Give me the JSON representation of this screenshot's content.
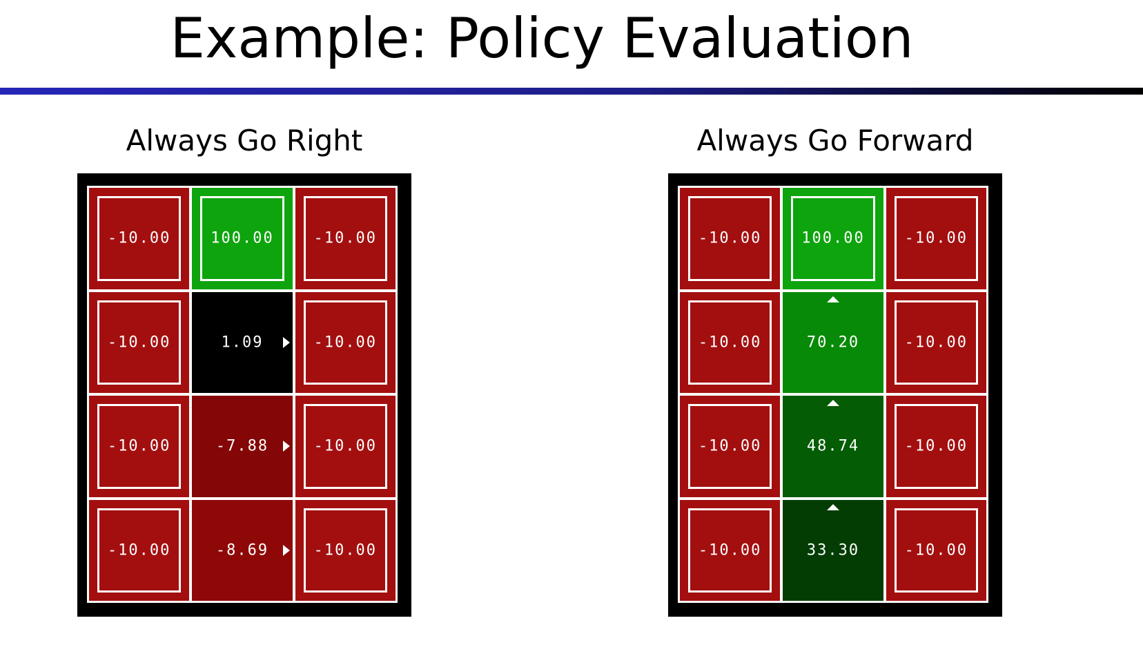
{
  "slide": {
    "title": "Example: Policy Evaluation"
  },
  "panels": [
    {
      "title": "Always Go Right",
      "cells": [
        {
          "value": "-10.00",
          "color": "#a30f0f",
          "terminal": true,
          "arrow": ""
        },
        {
          "value": "100.00",
          "color": "#0ea40e",
          "terminal": true,
          "arrow": ""
        },
        {
          "value": "-10.00",
          "color": "#a30f0f",
          "terminal": true,
          "arrow": ""
        },
        {
          "value": "-10.00",
          "color": "#a30f0f",
          "terminal": true,
          "arrow": ""
        },
        {
          "value": "1.09",
          "color": "#000000",
          "terminal": false,
          "arrow": "right"
        },
        {
          "value": "-10.00",
          "color": "#a30f0f",
          "terminal": true,
          "arrow": ""
        },
        {
          "value": "-10.00",
          "color": "#a30f0f",
          "terminal": true,
          "arrow": ""
        },
        {
          "value": "-7.88",
          "color": "#840606",
          "terminal": false,
          "arrow": "right"
        },
        {
          "value": "-10.00",
          "color": "#a30f0f",
          "terminal": true,
          "arrow": ""
        },
        {
          "value": "-10.00",
          "color": "#a30f0f",
          "terminal": true,
          "arrow": ""
        },
        {
          "value": "-8.69",
          "color": "#8f0808",
          "terminal": false,
          "arrow": "right"
        },
        {
          "value": "-10.00",
          "color": "#a30f0f",
          "terminal": true,
          "arrow": ""
        }
      ]
    },
    {
      "title": "Always Go Forward",
      "cells": [
        {
          "value": "-10.00",
          "color": "#a30f0f",
          "terminal": true,
          "arrow": ""
        },
        {
          "value": "100.00",
          "color": "#0ea40e",
          "terminal": true,
          "arrow": ""
        },
        {
          "value": "-10.00",
          "color": "#a30f0f",
          "terminal": true,
          "arrow": ""
        },
        {
          "value": "-10.00",
          "color": "#a30f0f",
          "terminal": true,
          "arrow": ""
        },
        {
          "value": "70.20",
          "color": "#078a07",
          "terminal": false,
          "arrow": "up"
        },
        {
          "value": "-10.00",
          "color": "#a30f0f",
          "terminal": true,
          "arrow": ""
        },
        {
          "value": "-10.00",
          "color": "#a30f0f",
          "terminal": true,
          "arrow": ""
        },
        {
          "value": "48.74",
          "color": "#045c04",
          "terminal": false,
          "arrow": "up"
        },
        {
          "value": "-10.00",
          "color": "#a30f0f",
          "terminal": true,
          "arrow": ""
        },
        {
          "value": "-10.00",
          "color": "#a30f0f",
          "terminal": true,
          "arrow": ""
        },
        {
          "value": "33.30",
          "color": "#033d03",
          "terminal": false,
          "arrow": "up"
        },
        {
          "value": "-10.00",
          "color": "#a30f0f",
          "terminal": true,
          "arrow": ""
        }
      ]
    }
  ]
}
